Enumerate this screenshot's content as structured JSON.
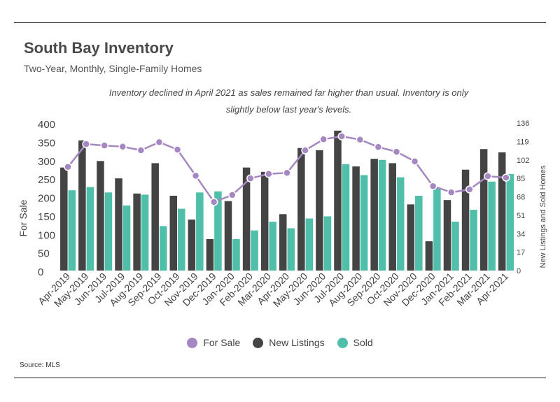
{
  "header": {
    "title": "South Bay Inventory",
    "subtitle": "Two-Year, Monthly, Single-Family Homes",
    "annotation": "Inventory declined in April 2021 as sales remained far higher than usual. Inventory is only slightly below last year's levels."
  },
  "source": "Source:  MLS",
  "colors": {
    "for_sale": "#a587c2",
    "new_listings": "#444444",
    "sold": "#4fbfaa"
  },
  "chart_data": {
    "type": "bar",
    "categories": [
      "Apr-2019",
      "May-2019",
      "Jun-2019",
      "Jul-2019",
      "Aug-2019",
      "Sep-2019",
      "Oct-2019",
      "Nov-2019",
      "Dec-2019",
      "Jan-2020",
      "Feb-2020",
      "Mar-2020",
      "Apr-2020",
      "May-2020",
      "Jun-2020",
      "Jul-2020",
      "Aug-2020",
      "Sep-2020",
      "Oct-2020",
      "Nov-2020",
      "Dec-2020",
      "Jan-2021",
      "Feb-2021",
      "Mar-2021",
      "Apr-2021"
    ],
    "ylabel": "For Sale",
    "y2label": "New Listings and Sold Homes",
    "ylim": [
      0,
      400
    ],
    "yticks": [
      "400",
      "350",
      "300",
      "250",
      "200",
      "150",
      "100",
      "50",
      "0"
    ],
    "y2lim": [
      0,
      136
    ],
    "y2ticks": [
      "136",
      "119",
      "102",
      "85",
      "68",
      "51",
      "34",
      "17",
      "0"
    ],
    "legend_position": "bottom",
    "series": [
      {
        "name": "For Sale",
        "type": "line",
        "axis": "left",
        "values": [
          281,
          343,
          339,
          336,
          326,
          348,
          328,
          257,
          186,
          205,
          250,
          262,
          265,
          326,
          356,
          364,
          355,
          335,
          322,
          296,
          229,
          212,
          220,
          256,
          252
        ]
      },
      {
        "name": "New Listings",
        "type": "bar",
        "axis": "right",
        "values": [
          95,
          120,
          101,
          85,
          71,
          99,
          69,
          47,
          29,
          64,
          95,
          91,
          52,
          113,
          111,
          129,
          96,
          103,
          99,
          61,
          27,
          65,
          93,
          112,
          109
        ]
      },
      {
        "name": "Sold",
        "type": "bar",
        "axis": "right",
        "values": [
          74,
          77,
          72,
          60,
          70,
          41,
          57,
          72,
          73,
          29,
          37,
          45,
          39,
          48,
          50,
          98,
          88,
          102,
          86,
          69,
          76,
          45,
          56,
          82,
          89
        ]
      }
    ]
  }
}
